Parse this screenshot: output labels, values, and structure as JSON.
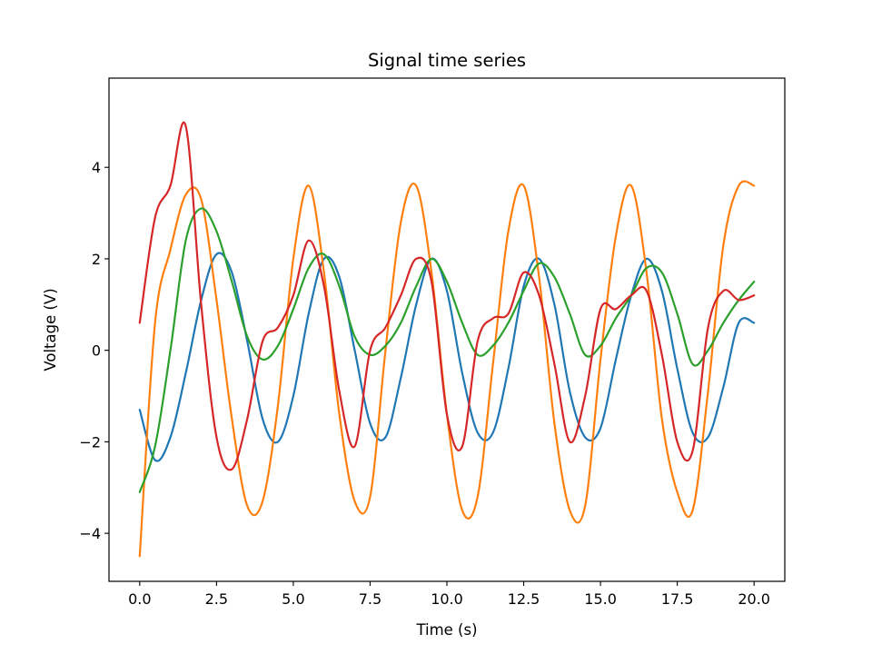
{
  "chart_data": {
    "type": "line",
    "title": "Signal time series",
    "xlabel": "Time (s)",
    "ylabel": "Voltage (V)",
    "xlim": [
      -1.0,
      21.0
    ],
    "ylim": [
      -5.05,
      5.95
    ],
    "x_ticks": [
      0,
      2.5,
      5,
      7.5,
      10,
      12.5,
      15,
      17.5,
      20
    ],
    "x_tick_labels": [
      "0.0",
      "2.5",
      "5.0",
      "7.5",
      "10.0",
      "12.5",
      "15.0",
      "17.5",
      "20.0"
    ],
    "y_ticks": [
      -4,
      -2,
      0,
      2,
      4
    ],
    "y_tick_labels": [
      "−4",
      "−2",
      "0",
      "2",
      "4"
    ],
    "grid": false,
    "legend": false,
    "x": [
      0,
      0.5,
      1,
      1.5,
      2,
      2.5,
      3,
      3.5,
      4,
      4.5,
      5,
      5.5,
      6,
      6.5,
      7,
      7.5,
      8,
      8.5,
      9,
      9.5,
      10,
      10.5,
      11,
      11.5,
      12,
      12.5,
      13,
      13.5,
      14,
      14.5,
      15,
      15.5,
      16,
      16.5,
      17,
      17.5,
      18,
      18.5,
      19,
      19.5,
      20
    ],
    "series": [
      {
        "color": "#1f77b4",
        "values": [
          -1.3,
          -2.4,
          -1.9,
          -0.5,
          1.1,
          2.1,
          1.7,
          0.2,
          -1.5,
          -2.0,
          -1.0,
          0.8,
          2.0,
          1.6,
          0.0,
          -1.6,
          -1.9,
          -0.6,
          1.0,
          2.0,
          1.3,
          -0.5,
          -1.8,
          -1.8,
          -0.4,
          1.4,
          2.0,
          1.0,
          -0.9,
          -1.9,
          -1.7,
          -0.2,
          1.2,
          2.0,
          1.3,
          -0.4,
          -1.8,
          -1.9,
          -0.8,
          0.6,
          0.6
        ]
      },
      {
        "color": "#ff7f0e",
        "values": [
          -4.5,
          0.6,
          2.2,
          3.4,
          3.3,
          1.1,
          -1.5,
          -3.4,
          -3.3,
          -1.2,
          2.0,
          3.6,
          1.7,
          -1.4,
          -3.3,
          -3.2,
          0.0,
          2.8,
          3.6,
          1.7,
          -1.4,
          -3.5,
          -3.2,
          -0.3,
          2.6,
          3.6,
          1.6,
          -1.6,
          -3.5,
          -3.4,
          -0.2,
          2.5,
          3.6,
          1.7,
          -1.5,
          -3.1,
          -3.5,
          -0.9,
          2.3,
          3.6,
          3.6
        ]
      },
      {
        "color": "#2ca02c",
        "values": [
          -3.1,
          -2.1,
          0.0,
          2.4,
          3.1,
          2.6,
          1.5,
          0.3,
          -0.2,
          0.1,
          0.9,
          1.8,
          2.1,
          1.4,
          0.3,
          -0.1,
          0.1,
          0.6,
          1.4,
          2.0,
          1.5,
          0.6,
          -0.1,
          0.1,
          0.6,
          1.3,
          1.9,
          1.6,
          0.8,
          -0.1,
          0.1,
          0.7,
          1.2,
          1.8,
          1.7,
          0.8,
          -0.3,
          0.0,
          0.6,
          1.1,
          1.5
        ]
      },
      {
        "color": "#d62728",
        "values": [
          0.6,
          2.9,
          3.6,
          4.9,
          1.0,
          -1.9,
          -2.6,
          -1.5,
          0.2,
          0.5,
          1.2,
          2.4,
          1.4,
          -0.9,
          -2.1,
          0.0,
          0.5,
          1.2,
          2.0,
          1.5,
          -1.4,
          -2.1,
          0.2,
          0.7,
          0.8,
          1.7,
          1.2,
          -0.3,
          -2.0,
          -1.0,
          0.9,
          0.9,
          1.2,
          1.3,
          -0.1,
          -2.0,
          -2.2,
          0.5,
          1.3,
          1.1,
          1.2
        ]
      }
    ]
  }
}
